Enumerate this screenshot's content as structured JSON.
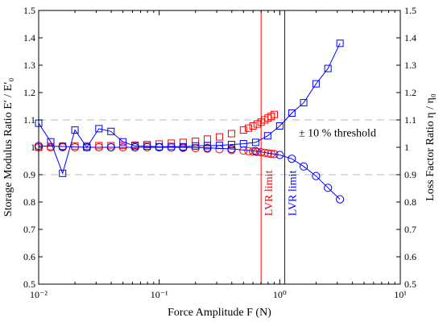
{
  "chart_data": {
    "type": "scatter",
    "xlabel": "Force Amplitude  F (N)",
    "ylabel_left": "Storage Modulus Ratio  E′ / E′₀",
    "ylabel_right": "Loss Factor Ratio  η / η₀",
    "x_scale": "log",
    "xlim": [
      0.01,
      10
    ],
    "ylim": [
      0.5,
      1.5
    ],
    "x_tick_labels": [
      "10⁻²",
      "10⁻¹",
      "10⁰",
      "10¹"
    ],
    "y_tick_labels": [
      "0.5",
      "0.6",
      "0.7",
      "0.8",
      "0.9",
      "1",
      "1.1",
      "1.2",
      "1.3",
      "1.4",
      "1.5"
    ],
    "grid": false,
    "thresholds": [
      0.9,
      1.1
    ],
    "threshold_label": "± 10 % threshold",
    "vlines": [
      {
        "x": 0.7,
        "color": "#ff0000",
        "label": "LVR limit"
      },
      {
        "x": 1.1,
        "color": "#0000ff",
        "label": "LVR limit"
      }
    ],
    "series": [
      {
        "marker": "square",
        "color": "#ff0000",
        "connected": false,
        "x": [
          0.01,
          0.0126,
          0.0158,
          0.02,
          0.0251,
          0.0316,
          0.0398,
          0.05,
          0.063,
          0.0794,
          0.1,
          0.126,
          0.158,
          0.2,
          0.251,
          0.316,
          0.398,
          0.5,
          0.55,
          0.6,
          0.65,
          0.7,
          0.75,
          0.8,
          0.85,
          0.9
        ],
        "y": [
          1.0,
          1.003,
          1.004,
          1.005,
          1.005,
          1.006,
          1.006,
          1.007,
          1.008,
          1.01,
          1.012,
          1.015,
          1.018,
          1.022,
          1.03,
          1.038,
          1.05,
          1.063,
          1.07,
          1.078,
          1.085,
          1.092,
          1.1,
          1.107,
          1.113,
          1.12
        ]
      },
      {
        "marker": "circle",
        "color": "#ff0000",
        "connected": false,
        "x": [
          0.01,
          0.0126,
          0.0158,
          0.02,
          0.0251,
          0.0316,
          0.0398,
          0.05,
          0.063,
          0.0794,
          0.1,
          0.126,
          0.158,
          0.2,
          0.251,
          0.316,
          0.398,
          0.5,
          0.55,
          0.6,
          0.65,
          0.7,
          0.75,
          0.8,
          0.85,
          0.9
        ],
        "y": [
          1.0,
          1.0,
          1.0,
          1.0,
          1.0,
          1.0,
          1.0,
          1.0,
          1.0,
          1.0,
          1.0,
          0.999,
          0.998,
          0.997,
          0.995,
          0.993,
          0.99,
          0.988,
          0.986,
          0.985,
          0.983,
          0.982,
          0.98,
          0.978,
          0.976,
          0.975
        ]
      },
      {
        "marker": "square",
        "color": "#0000ff",
        "connected": true,
        "x": [
          0.01,
          0.0126,
          0.0158,
          0.02,
          0.0251,
          0.0316,
          0.0398,
          0.05,
          0.063,
          0.0794,
          0.1,
          0.126,
          0.158,
          0.2,
          0.251,
          0.316,
          0.398,
          0.5,
          0.631,
          0.794,
          1.0,
          1.26,
          1.58,
          2.0,
          2.51,
          3.16
        ],
        "y": [
          1.088,
          1.02,
          0.905,
          1.063,
          1.0,
          1.068,
          1.058,
          1.02,
          1.005,
          1.004,
          1.002,
          1.003,
          1.002,
          1.005,
          1.006,
          1.007,
          1.01,
          1.013,
          1.018,
          1.042,
          1.078,
          1.125,
          1.163,
          1.232,
          1.288,
          1.38
        ]
      },
      {
        "marker": "circle",
        "color": "#0000ff",
        "connected": true,
        "x": [
          0.01,
          0.0158,
          0.0251,
          0.0398,
          0.063,
          0.1,
          0.158,
          0.251,
          0.398,
          0.631,
          1.0,
          1.26,
          1.58,
          2.0,
          2.51,
          3.16
        ],
        "y": [
          1.005,
          1.003,
          1.0,
          1.0,
          1.0,
          1.0,
          1.0,
          0.998,
          0.994,
          0.986,
          0.972,
          0.958,
          0.93,
          0.895,
          0.852,
          0.81
        ]
      }
    ]
  }
}
